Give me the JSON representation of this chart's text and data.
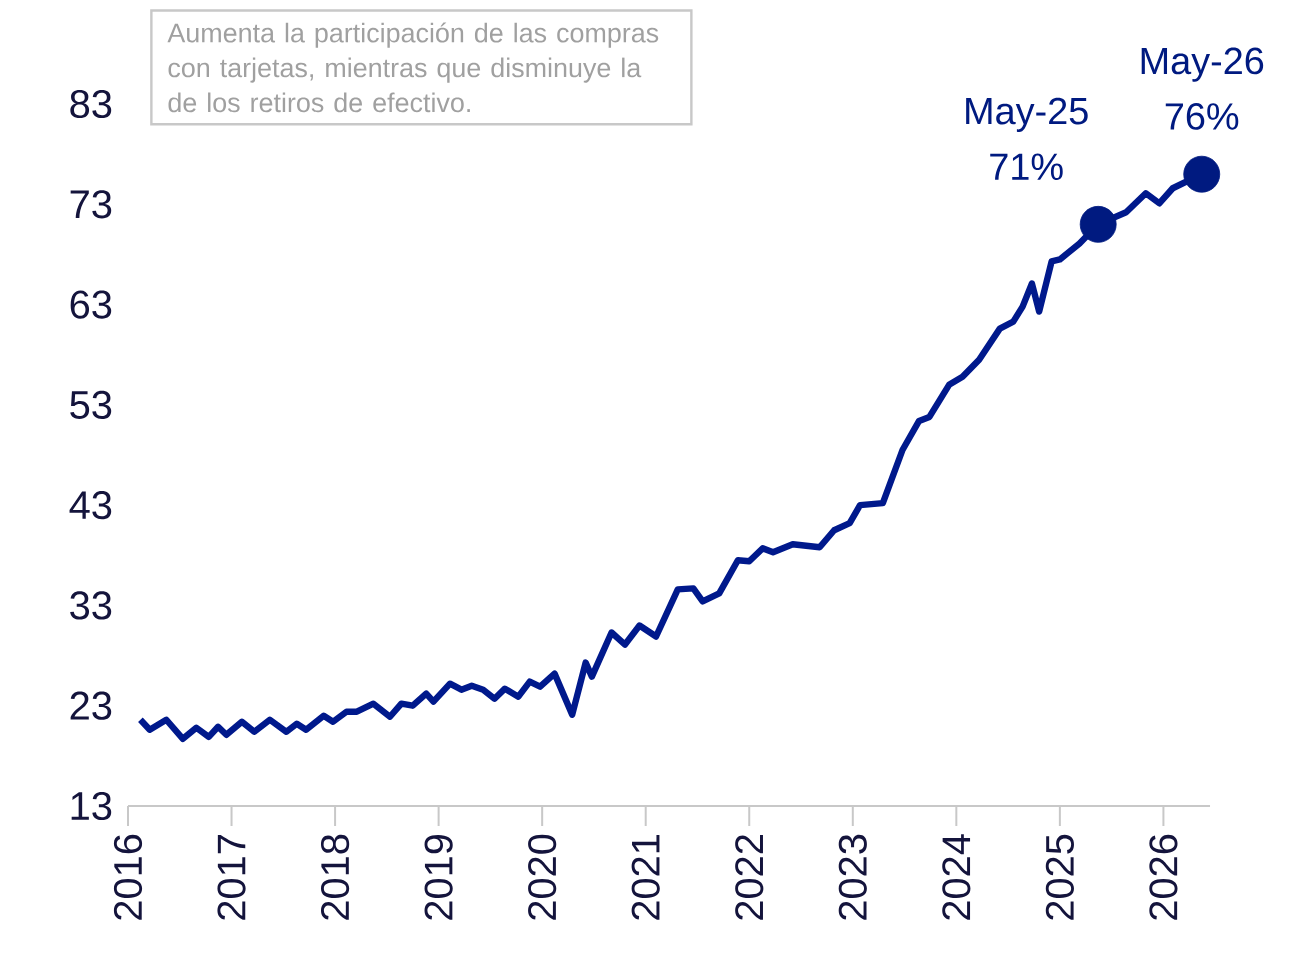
{
  "chart_data": {
    "type": "line",
    "annotations": [
      "Aumenta la participación de las compras con tarjetas, mientras que disminuye la de los retiros de efectivo.",
      {
        "text": "May-25",
        "x": 2025.37,
        "y": 71
      },
      {
        "text": "May-26",
        "x": 2026.37,
        "y": 76
      }
    ],
    "xlim": [
      2016,
      2026.45
    ],
    "xticks": [
      2016,
      2017,
      2018,
      2019,
      2020,
      2021,
      2022,
      2023,
      2024,
      2025,
      2026
    ],
    "ylim": [
      13,
      83
    ],
    "yticks": [
      13,
      23,
      33,
      43,
      53,
      63,
      73,
      83
    ],
    "grid": false,
    "series": [
      {
        "color": "#00198c",
        "marker": "none",
        "x": [
          2016.12,
          2016.21,
          2016.37,
          2016.53,
          2016.66,
          2016.78,
          2016.87,
          2016.95,
          2017.1,
          2017.22,
          2017.37,
          2017.53,
          2017.63,
          2017.72,
          2017.89,
          2017.98,
          2018.11,
          2018.21,
          2018.37,
          2018.53,
          2018.64,
          2018.75,
          2018.88,
          2018.95,
          2019.11,
          2019.22,
          2019.32,
          2019.43,
          2019.54,
          2019.64,
          2019.77,
          2019.88,
          2019.98,
          2020.12,
          2020.29,
          2020.42,
          2020.48,
          2020.67,
          2020.8,
          2020.94,
          2021.1,
          2021.31,
          2021.46,
          2021.55,
          2021.71,
          2021.89,
          2022.0,
          2022.13,
          2022.23,
          2022.42,
          2022.68,
          2022.82,
          2022.97,
          2023.07,
          2023.29,
          2023.48,
          2023.64,
          2023.74,
          2023.93,
          2024.06,
          2024.22,
          2024.42,
          2024.55,
          2024.64,
          2024.73,
          2024.8,
          2024.92,
          2025.0,
          2025.19,
          2025.37,
          2025.64,
          2025.83,
          2025.96,
          2026.09,
          2026.37
        ],
        "values": [
          21.6,
          20.6,
          21.6,
          19.7,
          20.8,
          19.9,
          20.9,
          20.1,
          21.4,
          20.4,
          21.6,
          20.4,
          21.2,
          20.6,
          22.0,
          21.4,
          22.4,
          22.4,
          23.2,
          21.9,
          23.2,
          23.0,
          24.2,
          23.4,
          25.2,
          24.6,
          25.0,
          24.6,
          23.7,
          24.7,
          23.9,
          25.4,
          24.9,
          26.2,
          22.1,
          27.3,
          25.9,
          30.3,
          29.1,
          31.0,
          29.9,
          34.6,
          34.7,
          33.4,
          34.2,
          37.5,
          37.4,
          38.7,
          38.3,
          39.1,
          38.8,
          40.5,
          41.2,
          43.0,
          43.2,
          48.5,
          51.4,
          51.8,
          55.0,
          55.8,
          57.5,
          60.6,
          61.3,
          62.8,
          65.1,
          62.3,
          67.3,
          67.5,
          69.1,
          71,
          72.2,
          74.1,
          73.1,
          74.6,
          76
        ]
      },
      {
        "type": "scatter",
        "color": "#001a80",
        "marker": "circle",
        "x": [
          2025.37,
          2026.37
        ],
        "values": [
          71,
          76
        ],
        "value_labels": [
          "71%",
          "76%"
        ]
      }
    ]
  }
}
